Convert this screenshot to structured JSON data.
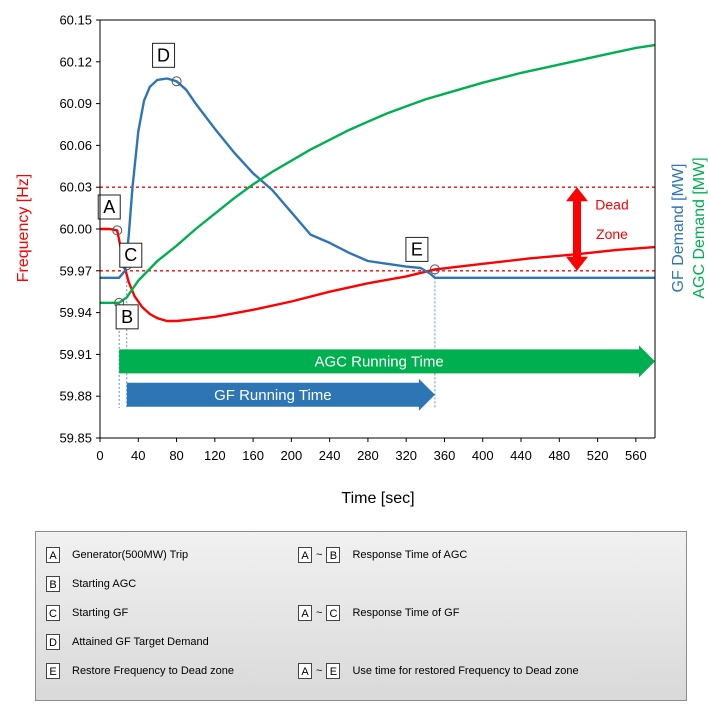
{
  "chart_data": {
    "type": "line",
    "xlabel": "Time [sec]",
    "ylabel_left": "Frequency [Hz]",
    "ylabel_right_1": "GF Demand [MW]",
    "ylabel_right_2": "AGC Demand [MW]",
    "xlim": [
      0,
      580
    ],
    "ylim": [
      59.85,
      60.15
    ],
    "x_ticks": [
      "0",
      "40",
      "80",
      "120",
      "160",
      "200",
      "240",
      "280",
      "320",
      "360",
      "400",
      "440",
      "480",
      "520",
      "560"
    ],
    "y_ticks": [
      "59.85",
      "59.88",
      "59.91",
      "59.94",
      "59.97",
      "60.00",
      "60.03",
      "60.06",
      "60.09",
      "60.12",
      "60.15"
    ],
    "colors": {
      "frequency": "#ff0000",
      "gf": "#2e75b6",
      "agc": "#00b050",
      "deadzone": "#ff0000"
    },
    "dead_zone": {
      "upper": 60.03,
      "lower": 59.97,
      "label_line1": "Dead",
      "label_line2": "Zone"
    },
    "series": [
      {
        "name": "Frequency [Hz]",
        "color": "#ff0000",
        "x": [
          0,
          10,
          18,
          22,
          26,
          30,
          36,
          44,
          52,
          60,
          70,
          80,
          95,
          120,
          160,
          200,
          240,
          280,
          320,
          350,
          400,
          450,
          500,
          540,
          580
        ],
        "y": [
          60.0,
          60.0,
          59.999,
          59.985,
          59.972,
          59.962,
          59.952,
          59.944,
          59.939,
          59.936,
          59.934,
          59.934,
          59.935,
          59.937,
          59.942,
          59.948,
          59.955,
          59.961,
          59.966,
          59.971,
          59.975,
          59.979,
          59.982,
          59.985,
          59.987
        ]
      },
      {
        "name": "GF Demand [MW]",
        "series_values_note": "values expressed on Hz-equivalent scale",
        "color": "#2e75b6",
        "x": [
          0,
          20,
          26,
          30,
          34,
          40,
          46,
          52,
          60,
          70,
          80,
          90,
          100,
          120,
          140,
          160,
          180,
          200,
          220,
          240,
          260,
          280,
          300,
          320,
          335,
          345,
          350,
          580
        ],
        "y": [
          59.965,
          59.965,
          59.97,
          59.995,
          60.03,
          60.07,
          60.092,
          60.102,
          60.107,
          60.108,
          60.106,
          60.1,
          60.09,
          60.072,
          60.055,
          60.04,
          60.028,
          60.012,
          59.996,
          59.99,
          59.983,
          59.977,
          59.975,
          59.973,
          59.972,
          59.968,
          59.965,
          59.965
        ]
      },
      {
        "name": "AGC Demand [MW]",
        "series_values_note": "values expressed on Hz-equivalent scale",
        "color": "#00b050",
        "x": [
          0,
          20,
          28,
          40,
          60,
          80,
          100,
          120,
          140,
          160,
          180,
          200,
          220,
          240,
          260,
          280,
          300,
          320,
          340,
          360,
          400,
          440,
          480,
          520,
          560,
          580
        ],
        "y": [
          59.947,
          59.947,
          59.951,
          59.963,
          59.977,
          59.988,
          60.0,
          60.011,
          60.022,
          60.032,
          60.041,
          60.049,
          60.057,
          60.064,
          60.071,
          60.077,
          60.083,
          60.088,
          60.093,
          60.097,
          60.105,
          60.112,
          60.118,
          60.124,
          60.13,
          60.132
        ]
      }
    ],
    "markers": [
      {
        "label": "A",
        "x": 18,
        "y": 59.999
      },
      {
        "label": "B",
        "x": 20,
        "y": 59.947
      },
      {
        "label": "C",
        "x": 28,
        "y": 59.974
      },
      {
        "label": "D",
        "x": 80,
        "y": 60.106
      },
      {
        "label": "E",
        "x": 350,
        "y": 59.971
      }
    ],
    "arrows": [
      {
        "label": "AGC Running Time",
        "x_start": 20,
        "x_end": 580,
        "color": "#00b050"
      },
      {
        "label": "GF Running Time",
        "x_start": 28,
        "x_end": 350,
        "color": "#2e75b6"
      }
    ]
  },
  "legend": {
    "rows": [
      {
        "key": "A",
        "text": "Generator(500MW) Trip",
        "range_from": "A",
        "tilde": "~",
        "range_to": "B",
        "range_text": "Response Time of AGC"
      },
      {
        "key": "B",
        "text": "Starting AGC"
      },
      {
        "key": "C",
        "text": "Starting GF",
        "range_from": "A",
        "tilde": "~",
        "range_to": "C",
        "range_text": "Response Time of GF"
      },
      {
        "key": "D",
        "text": "Attained GF Target Demand"
      },
      {
        "key": "E",
        "text": "Restore Frequency to Dead zone",
        "range_from": "A",
        "tilde": "~",
        "range_to": "E",
        "range_text": "Use time for restored Frequency to Dead zone"
      }
    ]
  }
}
